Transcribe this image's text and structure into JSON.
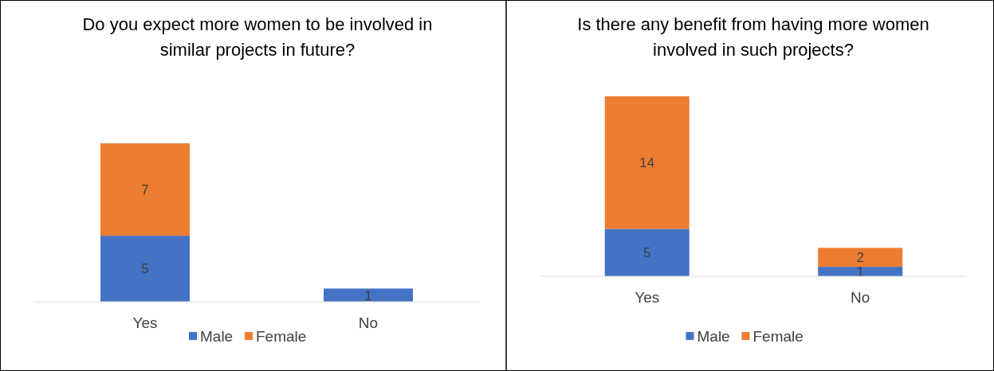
{
  "chart_data": [
    {
      "type": "bar",
      "title": "Do you expect more women to be involved in similar projects in future?",
      "categories": [
        "Yes",
        "No"
      ],
      "stacked": true,
      "data_labels": true,
      "legend": "bottom",
      "series": [
        {
          "name": "Male",
          "color": "#4472c4",
          "values": [
            5,
            1
          ]
        },
        {
          "name": "Female",
          "color": "#ed7d31",
          "values": [
            7,
            null
          ]
        }
      ]
    },
    {
      "type": "bar",
      "title": "Is there any benefit from having more women involved in such projects?",
      "categories": [
        "Yes",
        "No"
      ],
      "stacked": true,
      "data_labels": true,
      "legend": "bottom",
      "series": [
        {
          "name": "Male",
          "color": "#4472c4",
          "values": [
            5,
            1
          ]
        },
        {
          "name": "Female",
          "color": "#ed7d31",
          "values": [
            14,
            2
          ]
        }
      ]
    }
  ]
}
